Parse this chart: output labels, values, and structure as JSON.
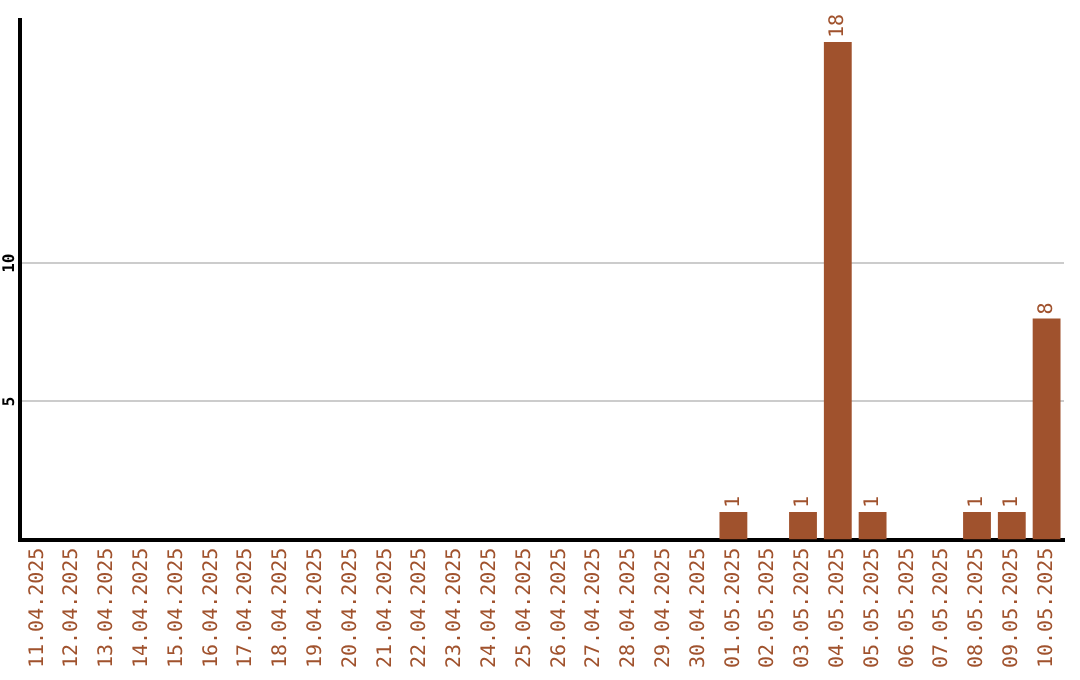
{
  "chart_data": {
    "type": "bar",
    "categories": [
      "11.04.2025",
      "12.04.2025",
      "13.04.2025",
      "14.04.2025",
      "15.04.2025",
      "16.04.2025",
      "17.04.2025",
      "18.04.2025",
      "19.04.2025",
      "20.04.2025",
      "21.04.2025",
      "22.04.2025",
      "23.04.2025",
      "24.04.2025",
      "25.04.2025",
      "26.04.2025",
      "27.04.2025",
      "28.04.2025",
      "29.04.2025",
      "30.04.2025",
      "01.05.2025",
      "02.05.2025",
      "03.05.2025",
      "04.05.2025",
      "05.05.2025",
      "06.05.2025",
      "07.05.2025",
      "08.05.2025",
      "09.05.2025",
      "10.05.2025"
    ],
    "values": [
      0,
      0,
      0,
      0,
      0,
      0,
      0,
      0,
      0,
      0,
      0,
      0,
      0,
      0,
      0,
      0,
      0,
      0,
      0,
      0,
      1,
      0,
      1,
      18,
      1,
      0,
      0,
      1,
      1,
      8
    ],
    "value_labels": [
      null,
      null,
      null,
      null,
      null,
      null,
      null,
      null,
      null,
      null,
      null,
      null,
      null,
      null,
      null,
      null,
      null,
      null,
      null,
      null,
      "1",
      null,
      "1",
      "18",
      "1",
      null,
      null,
      "1",
      "1",
      "8"
    ],
    "color": "#a0522d",
    "ylim": [
      0,
      18.8
    ],
    "yticks": [
      5,
      10
    ],
    "grid": "y",
    "legend": false
  }
}
